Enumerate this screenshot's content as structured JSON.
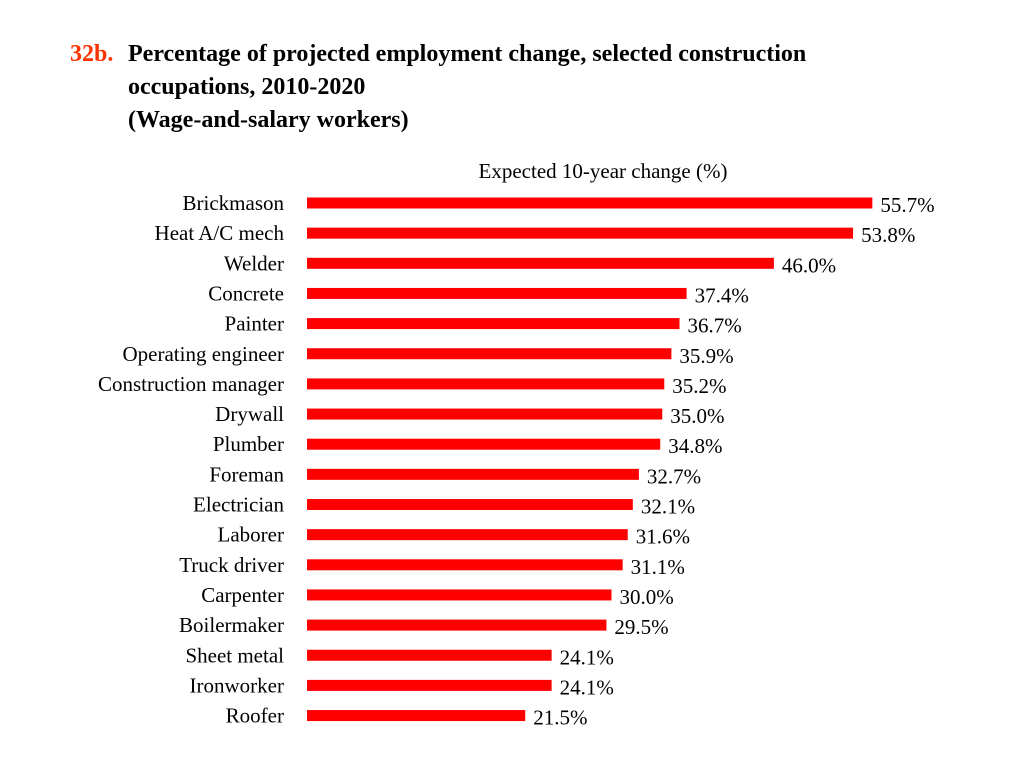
{
  "title": {
    "number": "32b.",
    "lines": [
      "Percentage of projected employment change, selected construction",
      "occupations, 2010-2020",
      "(Wage-and-salary workers)"
    ]
  },
  "colors": {
    "bar": "#ff0000",
    "title_number": "#ff3300"
  },
  "chart_data": {
    "type": "bar",
    "orientation": "horizontal",
    "title": "Percentage of projected employment change, selected construction occupations, 2010-2020 (Wage-and-salary workers)",
    "xlabel": "Expected 10-year change (%)",
    "ylabel": "",
    "xlim": [
      0,
      60
    ],
    "grid": false,
    "legend": "none",
    "categories": [
      "Brickmason",
      "Heat A/C mech",
      "Welder",
      "Concrete",
      "Painter",
      "Operating engineer",
      "Construction manager",
      "Drywall",
      "Plumber",
      "Foreman",
      "Electrician",
      "Laborer",
      "Truck driver",
      "Carpenter",
      "Boilermaker",
      "Sheet metal",
      "Ironworker",
      "Roofer"
    ],
    "values": [
      55.7,
      53.8,
      46.0,
      37.4,
      36.7,
      35.9,
      35.2,
      35.0,
      34.8,
      32.7,
      32.1,
      31.6,
      31.1,
      30.0,
      29.5,
      24.1,
      24.1,
      21.5
    ],
    "data_labels": [
      "55.7%",
      "53.8%",
      "46.0%",
      "37.4%",
      "36.7%",
      "35.9%",
      "35.2%",
      "35.0%",
      "34.8%",
      "32.7%",
      "32.1%",
      "31.6%",
      "31.1%",
      "30.0%",
      "29.5%",
      "24.1%",
      "24.1%",
      "21.5%"
    ]
  }
}
